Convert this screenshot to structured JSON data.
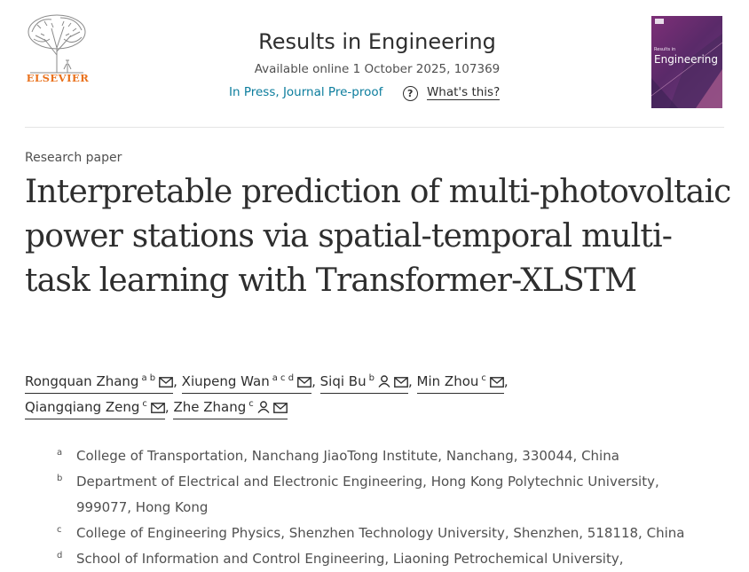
{
  "header": {
    "publisher": "ELSEVIER",
    "journal_title": "Results in Engineering",
    "available_online": "Available online 1 October 2025, 107369",
    "status": "In Press, Journal Pre-proof",
    "help_icon": "question-circle-icon",
    "whats_this": "What's this?",
    "cover": {
      "small_text": "Results in",
      "big_text": "Engineering"
    }
  },
  "article": {
    "type": "Research paper",
    "title": "Interpretable prediction of multi-photovoltaic power stations via spatial-temporal multi-task learning with Transformer-XLSTM",
    "authors": [
      {
        "name": "Rongquan Zhang",
        "sup": "a b",
        "icons": [
          "mail-icon"
        ],
        "separator": ","
      },
      {
        "name": "Xiupeng Wan",
        "sup": "a c d",
        "icons": [
          "mail-icon"
        ],
        "separator": ","
      },
      {
        "name": "Siqi Bu",
        "sup": "b",
        "icons": [
          "person-icon",
          "mail-icon"
        ],
        "separator": ","
      },
      {
        "name": "Min Zhou",
        "sup": "c",
        "icons": [
          "mail-icon"
        ],
        "separator": ","
      },
      {
        "name": "Qiangqiang Zeng",
        "sup": "c",
        "icons": [
          "mail-icon"
        ],
        "separator": ","
      },
      {
        "name": "Zhe Zhang",
        "sup": "c",
        "icons": [
          "person-icon",
          "mail-icon"
        ],
        "separator": ""
      }
    ],
    "affiliations": [
      {
        "mark": "a",
        "lines": [
          "College of Transportation, Nanchang JiaoTong Institute, Nanchang, 330044, China"
        ]
      },
      {
        "mark": "b",
        "lines": [
          "Department of Electrical and Electronic Engineering, Hong Kong Polytechnic University,",
          "999077, Hong Kong"
        ]
      },
      {
        "mark": "c",
        "lines": [
          "College of Engineering Physics, Shenzhen Technology University, Shenzhen, 518118, China"
        ]
      },
      {
        "mark": "d",
        "lines": [
          "School of Information and Control Engineering, Liaoning Petrochemical University,"
        ]
      }
    ]
  },
  "colors": {
    "publisher_orange": "#e9711c",
    "link_teal": "#0c7d9d",
    "cover_purple": "#6a2c72"
  }
}
